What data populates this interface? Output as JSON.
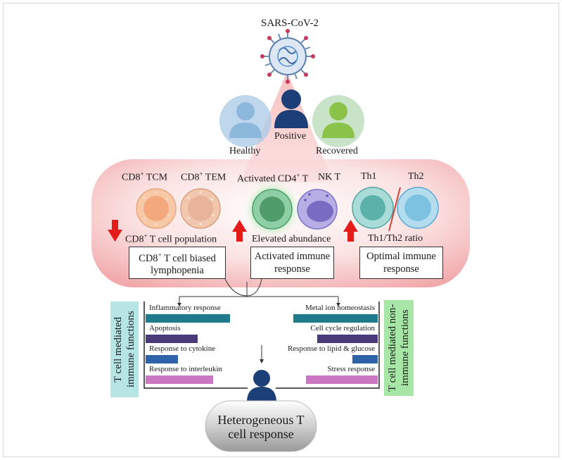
{
  "virus": {
    "label": "SARS-CoV-2"
  },
  "people": {
    "healthy": "Healthy",
    "positive": "Positive",
    "recovered": "Recovered"
  },
  "cells": {
    "cd8_tcm": {
      "prefix": "CD8",
      "sup": "+",
      "suffix": " TCM"
    },
    "cd8_tem": {
      "prefix": "CD8",
      "sup": "+",
      "suffix": " TEM"
    },
    "act_cd4": {
      "prefix": "Activated CD4",
      "sup": "+",
      "suffix": " T"
    },
    "nkt": "NK T",
    "th1": "Th1",
    "th2": "Th2"
  },
  "effects": {
    "cd8_pop": {
      "prefix": "CD8",
      "sup": "+",
      "suffix": " T cell population",
      "direction": "down"
    },
    "elevated": {
      "text": "Elevated abundance",
      "direction": "up"
    },
    "ratio": {
      "text": "Th1/Th2 ratio",
      "direction": "up"
    }
  },
  "outcomes": {
    "lymphopenia": {
      "line1_prefix": "CD8",
      "line1_sup": "+",
      "line1_suffix": " T cell biased",
      "line2": "lymphopenia"
    },
    "activated": {
      "line1": "Activated immune",
      "line2": "response"
    },
    "optimal": {
      "line1": "Optimal immune",
      "line2": "response"
    }
  },
  "functions": {
    "immune_title": "T cell mediated immune functions",
    "non_immune_title": "T cell mediated non-immune functions",
    "immune": [
      {
        "label": "Inflammatory response",
        "color": "#1f7a8c",
        "value": 1.0
      },
      {
        "label": "Apoptosis",
        "color": "#4a3a7a",
        "value": 0.62
      },
      {
        "label": "Response to cytokine",
        "color": "#2e63a8",
        "value": 0.38
      },
      {
        "label": "Response to interleukin",
        "color": "#cc77c4",
        "value": 0.8
      }
    ],
    "non_immune": [
      {
        "label": "Metal ion homeostasis",
        "color": "#1f7a8c",
        "value": 1.0
      },
      {
        "label": "Cell cycle regulation",
        "color": "#4a3a7a",
        "value": 0.72
      },
      {
        "label": "Response to lipid & glucose",
        "color": "#2e63a8",
        "value": 0.3
      },
      {
        "label": "Stress response",
        "color": "#cc77c4",
        "value": 0.85
      }
    ]
  },
  "result": {
    "line1": "Heterogeneous T",
    "line2": "cell response"
  },
  "colors": {
    "panel_pink": "#f6c9c9",
    "arrow_red": "#e31b1b",
    "healthy_blue": "#8cb8dc",
    "positive_navy": "#1d3f78",
    "recovered_green": "#8bc34a",
    "immune_teal": "#b7e4e4",
    "non_immune_green": "#a8e6a8"
  }
}
